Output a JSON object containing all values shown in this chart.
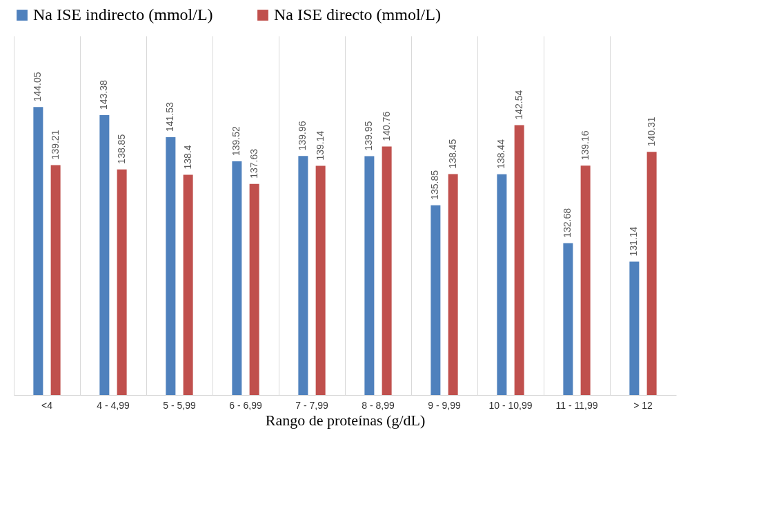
{
  "chart_data": {
    "type": "bar",
    "xlabel": "Rango de proteínas  (g/dL)",
    "categories": [
      "<4",
      "4 - 4,99",
      "5 - 5,99",
      "6 - 6,99",
      "7 - 7,99",
      "8 - 8,99",
      "9 - 9,99",
      "10 - 10,99",
      "11 - 11,99",
      "> 12"
    ],
    "series": [
      {
        "name": "Na ISE indirecto (mmol/L)",
        "color": "#4f81bd",
        "values": [
          144.05,
          143.38,
          141.53,
          139.52,
          139.96,
          139.95,
          135.85,
          138.44,
          132.68,
          131.14
        ]
      },
      {
        "name": "Na ISE directo (mmol/L)",
        "color": "#c0504d",
        "values": [
          139.21,
          138.85,
          138.4,
          137.63,
          139.14,
          140.76,
          138.45,
          142.54,
          139.16,
          140.31
        ]
      }
    ],
    "ylim": [
      120,
      150
    ],
    "tick_labels": "x",
    "data_labels": true,
    "grid": "x",
    "legend": "top"
  }
}
